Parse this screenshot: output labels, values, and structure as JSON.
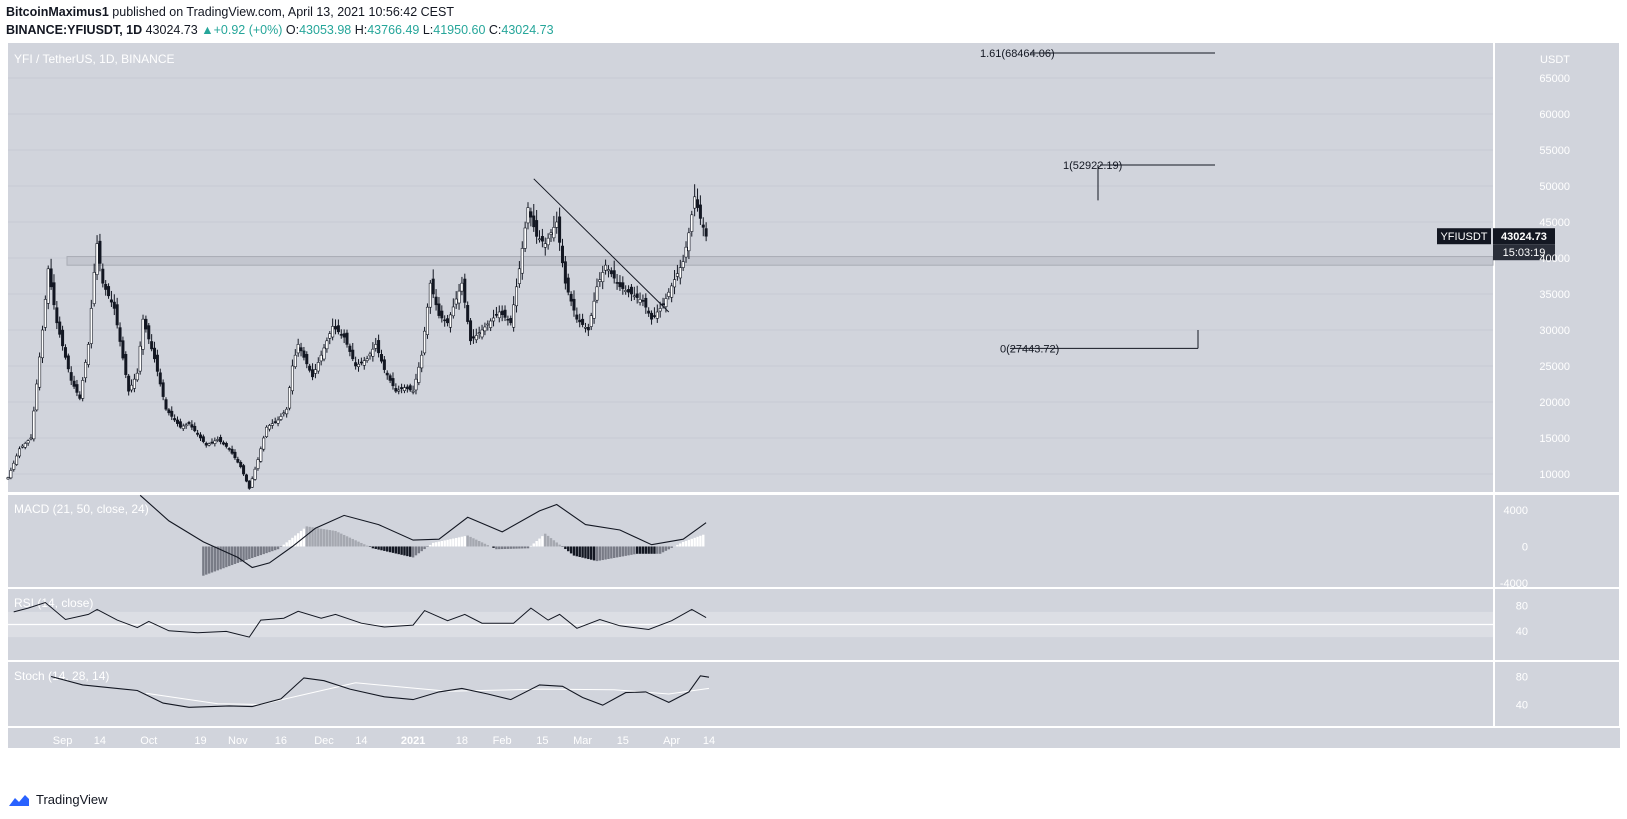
{
  "header": {
    "author": "BitcoinMaximus1",
    "published": "published on TradingView.com, April 13, 2021 10:56:42 CEST",
    "symbol": "BINANCE:YFIUSDT, 1D",
    "last": "43024.73",
    "change": "+0.92 (+0%)",
    "o_label": "O:",
    "o_value": "43053.98",
    "h_label": "H:",
    "h_value": "43766.49",
    "l_label": "L:",
    "l_value": "41950.60",
    "c_label": "C:",
    "c_value": "43024.73"
  },
  "footer": {
    "brand": "TradingView"
  },
  "colors": {
    "panel_bg": "#d1d4dc",
    "up_body": "#ffffff",
    "down_body": "#131722",
    "line": "#131722",
    "accent_green": "#26a69a",
    "price_tag_bg": "#131722"
  },
  "chart_data": {
    "type": "candlestick",
    "title": "YFI / TetherUS, 1D, BINANCE",
    "currency": "USDT",
    "ylim": [
      6000,
      72000
    ],
    "yticks": [
      10000,
      15000,
      20000,
      25000,
      30000,
      35000,
      40000,
      45000,
      50000,
      55000,
      60000,
      65000
    ],
    "xtick_labels": [
      "Sep",
      "14",
      "Oct",
      "19",
      "Nov",
      "16",
      "Dec",
      "14",
      "2021",
      "18",
      "Feb",
      "15",
      "Mar",
      "15",
      "Apr",
      "14"
    ],
    "last_price_tag": "43024.73",
    "symbol_tag": "YFIUSDT",
    "countdown": "15:03:19",
    "resistance_zone": [
      39000,
      40200
    ],
    "fib_levels": [
      {
        "label": "1.61(68464.06)",
        "value": 68464.06
      },
      {
        "label": "1(52922.19)",
        "value": 52922.19
      },
      {
        "label": "0(27443.72)",
        "value": 27443.72
      }
    ],
    "trendline": {
      "from": [
        "2021-02-12",
        51000
      ],
      "to": [
        "2021-03-31",
        32500
      ]
    },
    "close_path": [
      [
        "2020-08-13",
        9500
      ],
      [
        "2020-08-17",
        13500
      ],
      [
        "2020-08-21",
        15000
      ],
      [
        "2020-08-25",
        30000
      ],
      [
        "2020-08-27",
        38500
      ],
      [
        "2020-08-30",
        31000
      ],
      [
        "2020-09-04",
        23000
      ],
      [
        "2020-09-07",
        20500
      ],
      [
        "2020-09-10",
        28000
      ],
      [
        "2020-09-12",
        38000
      ],
      [
        "2020-09-13",
        42000
      ],
      [
        "2020-09-15",
        36500
      ],
      [
        "2020-09-19",
        33000
      ],
      [
        "2020-09-24",
        21500
      ],
      [
        "2020-09-27",
        24000
      ],
      [
        "2020-09-29",
        31500
      ],
      [
        "2020-10-03",
        26000
      ],
      [
        "2020-10-07",
        19000
      ],
      [
        "2020-10-12",
        16500
      ],
      [
        "2020-10-15",
        17000
      ],
      [
        "2020-10-21",
        14000
      ],
      [
        "2020-10-25",
        14800
      ],
      [
        "2020-10-29",
        13500
      ],
      [
        "2020-11-02",
        11000
      ],
      [
        "2020-11-05",
        8000
      ],
      [
        "2020-11-08",
        12000
      ],
      [
        "2020-11-11",
        16500
      ],
      [
        "2020-11-15",
        17500
      ],
      [
        "2020-11-18",
        19000
      ],
      [
        "2020-11-20",
        25000
      ],
      [
        "2020-11-22",
        28000
      ],
      [
        "2020-11-27",
        23500
      ],
      [
        "2020-12-01",
        27500
      ],
      [
        "2020-12-04",
        30500
      ],
      [
        "2020-12-08",
        29000
      ],
      [
        "2020-12-12",
        25000
      ],
      [
        "2020-12-16",
        26000
      ],
      [
        "2020-12-19",
        28000
      ],
      [
        "2020-12-22",
        24500
      ],
      [
        "2020-12-26",
        21500
      ],
      [
        "2020-12-29",
        22000
      ],
      [
        "2021-01-01",
        21500
      ],
      [
        "2021-01-04",
        26500
      ],
      [
        "2021-01-07",
        36500
      ],
      [
        "2021-01-10",
        32000
      ],
      [
        "2021-01-13",
        31000
      ],
      [
        "2021-01-18",
        36500
      ],
      [
        "2021-01-21",
        28500
      ],
      [
        "2021-01-25",
        30000
      ],
      [
        "2021-01-31",
        32500
      ],
      [
        "2021-02-04",
        31000
      ],
      [
        "2021-02-07",
        38500
      ],
      [
        "2021-02-10",
        47000
      ],
      [
        "2021-02-13",
        43000
      ],
      [
        "2021-02-16",
        42000
      ],
      [
        "2021-02-20",
        45000
      ],
      [
        "2021-02-23",
        36500
      ],
      [
        "2021-02-27",
        31500
      ],
      [
        "2021-03-03",
        30000
      ],
      [
        "2021-03-06",
        36000
      ],
      [
        "2021-03-09",
        39000
      ],
      [
        "2021-03-14",
        36000
      ],
      [
        "2021-03-18",
        35000
      ],
      [
        "2021-03-22",
        34000
      ],
      [
        "2021-03-25",
        31500
      ],
      [
        "2021-03-29",
        33500
      ],
      [
        "2021-04-02",
        37000
      ],
      [
        "2021-04-05",
        39500
      ],
      [
        "2021-04-07",
        43500
      ],
      [
        "2021-04-09",
        48500
      ],
      [
        "2021-04-11",
        45500
      ],
      [
        "2021-04-13",
        43024.73
      ]
    ],
    "indicators": [
      {
        "name": "MACD (21, 50, close, 24)",
        "ylim": [
          -4000,
          5200
        ],
        "yticks": [
          4000,
          0,
          -4000
        ],
        "macd_line": [
          [
            "2020-09-28",
            5600
          ],
          [
            "2020-10-08",
            2800
          ],
          [
            "2020-10-20",
            500
          ],
          [
            "2020-11-01",
            -1200
          ],
          [
            "2020-11-06",
            -2300
          ],
          [
            "2020-11-12",
            -1800
          ],
          [
            "2020-11-20",
            0
          ],
          [
            "2020-11-28",
            2000
          ],
          [
            "2020-12-08",
            3400
          ],
          [
            "2020-12-20",
            2400
          ],
          [
            "2021-01-01",
            700
          ],
          [
            "2021-01-10",
            800
          ],
          [
            "2021-01-20",
            3200
          ],
          [
            "2021-02-01",
            1600
          ],
          [
            "2021-02-14",
            3900
          ],
          [
            "2021-02-20",
            4600
          ],
          [
            "2021-03-02",
            2400
          ],
          [
            "2021-03-14",
            1800
          ],
          [
            "2021-03-25",
            200
          ],
          [
            "2021-04-05",
            800
          ],
          [
            "2021-04-13",
            2600
          ]
        ],
        "histogram": [
          [
            "2020-10-20",
            -3200
          ],
          [
            "2020-11-01",
            -1800
          ],
          [
            "2020-11-15",
            -300
          ],
          [
            "2020-11-25",
            2200
          ],
          [
            "2020-12-05",
            1700
          ],
          [
            "2020-12-18",
            -200
          ],
          [
            "2021-01-01",
            -1200
          ],
          [
            "2021-01-08",
            400
          ],
          [
            "2021-01-20",
            1200
          ],
          [
            "2021-01-30",
            -300
          ],
          [
            "2021-02-10",
            -200
          ],
          [
            "2021-02-16",
            1400
          ],
          [
            "2021-02-26",
            -1000
          ],
          [
            "2021-03-06",
            -1600
          ],
          [
            "2021-03-20",
            -800
          ],
          [
            "2021-03-28",
            -800
          ],
          [
            "2021-04-05",
            500
          ],
          [
            "2021-04-13",
            1400
          ]
        ]
      },
      {
        "name": "RSI (14, close)",
        "ylim": [
          0,
          100
        ],
        "yticks": [
          80,
          40
        ],
        "bands": [
          30,
          70
        ],
        "midline": 50,
        "series": [
          [
            "2020-08-15",
            70
          ],
          [
            "2020-08-20",
            76
          ],
          [
            "2020-08-26",
            85
          ],
          [
            "2020-09-02",
            58
          ],
          [
            "2020-09-10",
            66
          ],
          [
            "2020-09-13",
            74
          ],
          [
            "2020-09-20",
            57
          ],
          [
            "2020-09-27",
            45
          ],
          [
            "2020-10-01",
            55
          ],
          [
            "2020-10-08",
            40
          ],
          [
            "2020-10-18",
            37
          ],
          [
            "2020-10-28",
            39
          ],
          [
            "2020-11-05",
            30
          ],
          [
            "2020-11-09",
            57
          ],
          [
            "2020-11-17",
            60
          ],
          [
            "2020-11-22",
            71
          ],
          [
            "2020-11-30",
            60
          ],
          [
            "2020-12-05",
            66
          ],
          [
            "2020-12-14",
            52
          ],
          [
            "2020-12-22",
            46
          ],
          [
            "2021-01-01",
            49
          ],
          [
            "2021-01-05",
            72
          ],
          [
            "2021-01-13",
            56
          ],
          [
            "2021-01-19",
            66
          ],
          [
            "2021-01-25",
            52
          ],
          [
            "2021-02-05",
            52
          ],
          [
            "2021-02-11",
            76
          ],
          [
            "2021-02-17",
            57
          ],
          [
            "2021-02-21",
            66
          ],
          [
            "2021-02-27",
            44
          ],
          [
            "2021-03-07",
            58
          ],
          [
            "2021-03-14",
            48
          ],
          [
            "2021-03-24",
            42
          ],
          [
            "2021-04-01",
            56
          ],
          [
            "2021-04-08",
            74
          ],
          [
            "2021-04-13",
            61
          ]
        ]
      },
      {
        "name": "Stoch (14, 28, 14)",
        "ylim": [
          15,
          95
        ],
        "yticks": [
          80,
          40
        ],
        "k": [
          [
            "2020-08-28",
            80
          ],
          [
            "2020-09-08",
            68
          ],
          [
            "2020-09-27",
            60
          ],
          [
            "2020-10-06",
            42
          ],
          [
            "2020-10-15",
            36
          ],
          [
            "2020-10-29",
            38
          ],
          [
            "2020-11-06",
            37
          ],
          [
            "2020-11-16",
            48
          ],
          [
            "2020-11-24",
            78
          ],
          [
            "2020-12-01",
            74
          ],
          [
            "2020-12-10",
            62
          ],
          [
            "2020-12-22",
            51
          ],
          [
            "2021-01-01",
            47
          ],
          [
            "2021-01-10",
            58
          ],
          [
            "2021-01-18",
            63
          ],
          [
            "2021-01-27",
            55
          ],
          [
            "2021-02-04",
            47
          ],
          [
            "2021-02-14",
            68
          ],
          [
            "2021-02-22",
            66
          ],
          [
            "2021-03-01",
            50
          ],
          [
            "2021-03-08",
            39
          ],
          [
            "2021-03-16",
            57
          ],
          [
            "2021-03-23",
            58
          ],
          [
            "2021-03-31",
            43
          ],
          [
            "2021-04-07",
            58
          ],
          [
            "2021-04-11",
            81
          ],
          [
            "2021-04-14",
            79
          ]
        ],
        "d": [
          [
            "2020-09-30",
            56
          ],
          [
            "2020-10-25",
            41
          ],
          [
            "2020-11-09",
            40
          ],
          [
            "2020-12-12",
            71
          ],
          [
            "2021-01-13",
            59
          ],
          [
            "2021-02-15",
            62
          ],
          [
            "2021-03-12",
            61
          ],
          [
            "2021-03-31",
            55
          ],
          [
            "2021-04-14",
            63
          ]
        ]
      }
    ]
  }
}
